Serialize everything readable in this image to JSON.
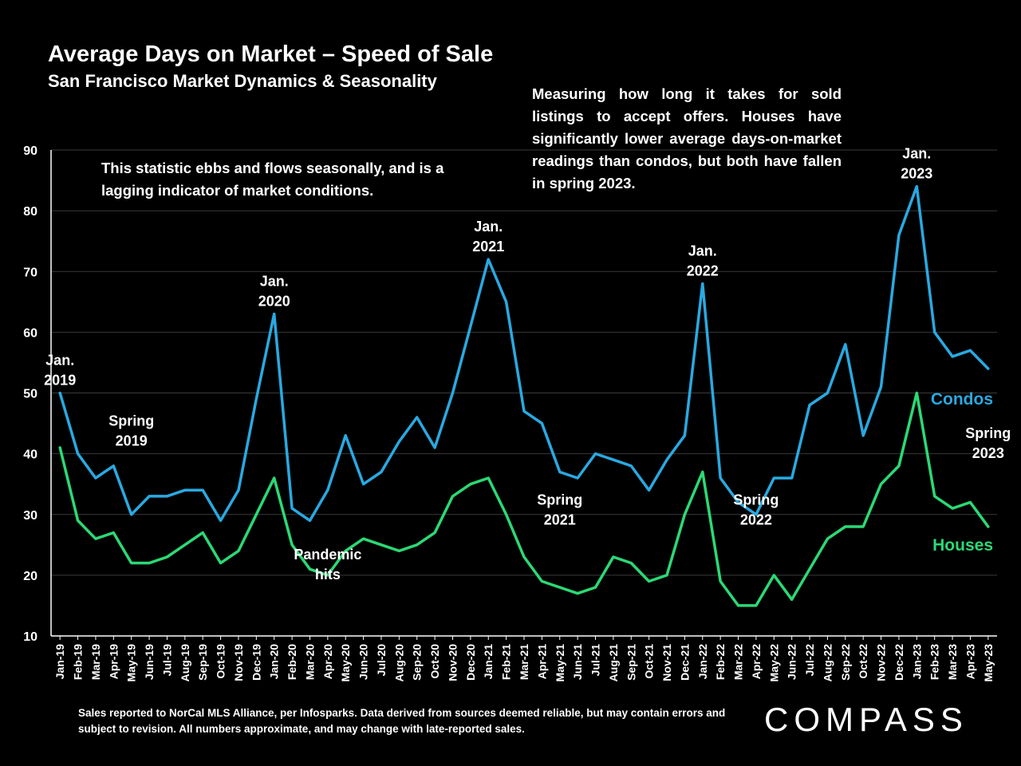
{
  "header": {
    "title": "Average Days on Market – Speed of Sale",
    "subtitle": "San Francisco Market Dynamics & Seasonality"
  },
  "notes": {
    "left": "This statistic ebbs and flows seasonally, and is a lagging indicator of market conditions.",
    "right": "Measuring how long it takes for sold listings to accept offers. Houses have significantly lower average days-on-market readings than condos, but both have fallen in spring 2023."
  },
  "footer": {
    "source": "Sales reported to NorCal MLS Alliance, per Infosparks. Data derived from sources deemed reliable, but may contain errors and subject to revision. All numbers approximate, and may change with late-reported sales.",
    "logo": "COMPASS"
  },
  "colors": {
    "condos": "#29a9e1",
    "houses": "#2bd975",
    "grid": "#3a3a3a",
    "axis": "#ffffff"
  },
  "chart_data": {
    "type": "line",
    "title": "Average Days on Market – Speed of Sale",
    "subtitle": "San Francisco Market Dynamics & Seasonality",
    "xlabel": "",
    "ylabel": "",
    "ylim": [
      10,
      90
    ],
    "yticks": [
      10,
      20,
      30,
      40,
      50,
      60,
      70,
      80,
      90
    ],
    "grid": true,
    "categories": [
      "Jan-19",
      "Feb-19",
      "Mar-19",
      "Apr-19",
      "May-19",
      "Jun-19",
      "Jul-19",
      "Aug-19",
      "Sep-19",
      "Oct-19",
      "Nov-19",
      "Dec-19",
      "Jan-20",
      "Feb-20",
      "Mar-20",
      "Apr-20",
      "May-20",
      "Jun-20",
      "Jul-20",
      "Aug-20",
      "Sep-20",
      "Oct-20",
      "Nov-20",
      "Dec-20",
      "Jan-21",
      "Feb-21",
      "Mar-21",
      "Apr-21",
      "May-21",
      "Jun-21",
      "Jul-21",
      "Aug-21",
      "Sep-21",
      "Oct-21",
      "Nov-21",
      "Dec-21",
      "Jan-22",
      "Feb-22",
      "Mar-22",
      "Apr-22",
      "May-22",
      "Jun-22",
      "Jul-22",
      "Aug-22",
      "Sep-22",
      "Oct-22",
      "Nov-22",
      "Dec-22",
      "Jan-23",
      "Feb-23",
      "Mar-23",
      "Apr-23",
      "May-23"
    ],
    "series": [
      {
        "name": "Condos",
        "color": "#29a9e1",
        "values": [
          50,
          40,
          36,
          38,
          30,
          33,
          33,
          34,
          34,
          29,
          34,
          49,
          63,
          31,
          29,
          34,
          43,
          35,
          37,
          42,
          46,
          41,
          50,
          61,
          72,
          65,
          47,
          45,
          37,
          36,
          40,
          39,
          38,
          34,
          39,
          43,
          68,
          36,
          32,
          30,
          36,
          36,
          48,
          50,
          58,
          43,
          51,
          76,
          84,
          60,
          56,
          57,
          54
        ]
      },
      {
        "name": "Houses",
        "color": "#2bd975",
        "values": [
          41,
          29,
          26,
          27,
          22,
          22,
          23,
          25,
          27,
          22,
          24,
          30,
          36,
          25,
          21,
          20,
          24,
          26,
          25,
          24,
          25,
          27,
          33,
          35,
          36,
          30,
          23,
          19,
          18,
          17,
          18,
          23,
          22,
          19,
          20,
          30,
          37,
          19,
          15,
          15,
          20,
          16,
          21,
          26,
          28,
          28,
          35,
          38,
          50,
          33,
          31,
          32,
          28
        ]
      }
    ],
    "annotations": [
      {
        "text": [
          "Jan.",
          "2019"
        ],
        "category": "Jan-19",
        "y": 50
      },
      {
        "text": [
          "Spring",
          "2019"
        ],
        "category": "May-19",
        "y": 40
      },
      {
        "text": [
          "Jan.",
          "2020"
        ],
        "category": "Jan-20",
        "y": 63
      },
      {
        "text": [
          "Pandemic",
          "hits"
        ],
        "category": "Apr-20",
        "y": 18
      },
      {
        "text": [
          "Jan.",
          "2021"
        ],
        "category": "Jan-21",
        "y": 72
      },
      {
        "text": [
          "Spring",
          "2021"
        ],
        "category": "May-21",
        "y": 27
      },
      {
        "text": [
          "Jan.",
          "2022"
        ],
        "category": "Jan-22",
        "y": 68
      },
      {
        "text": [
          "Spring",
          "2022"
        ],
        "category": "Apr-22",
        "y": 27
      },
      {
        "text": [
          "Jan.",
          "2023"
        ],
        "category": "Jan-23",
        "y": 84
      },
      {
        "text": [
          "Spring",
          "2023"
        ],
        "category": "May-23",
        "y": 38
      }
    ]
  }
}
